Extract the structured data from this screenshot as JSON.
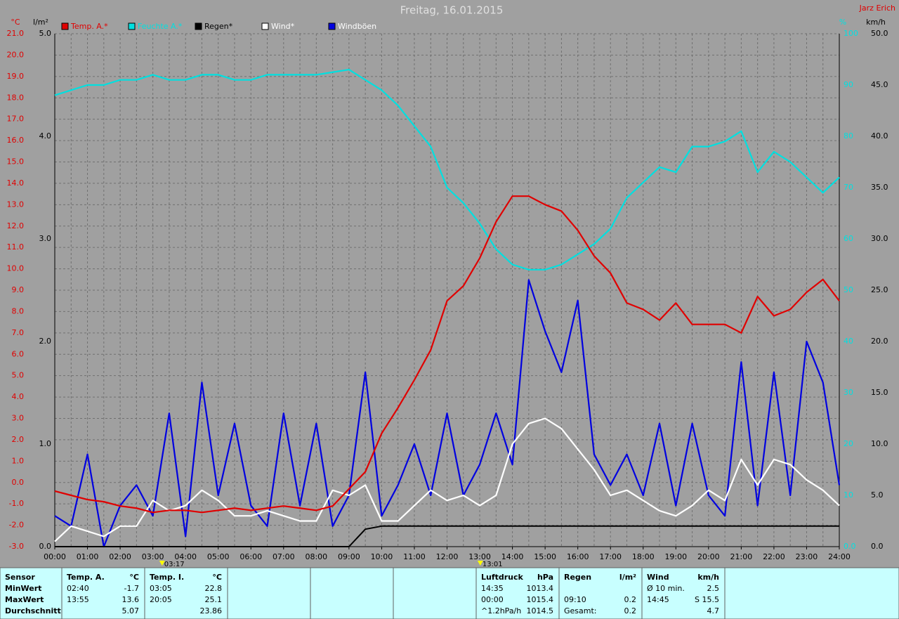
{
  "chart_data": {
    "type": "line",
    "title": "Freitag, 16.01.2015",
    "author": "Jarz Erich",
    "x": [
      0,
      0.5,
      1,
      1.5,
      2,
      2.5,
      3,
      3.5,
      4,
      4.5,
      5,
      5.5,
      6,
      6.5,
      7,
      7.5,
      8,
      8.5,
      9,
      9.5,
      10,
      10.5,
      11,
      11.5,
      12,
      12.5,
      13,
      13.5,
      14,
      14.5,
      15,
      15.5,
      16,
      16.5,
      17,
      17.5,
      18,
      18.5,
      19,
      19.5,
      20,
      20.5,
      21,
      21.5,
      22,
      22.5,
      23,
      23.5,
      24
    ],
    "xlim": [
      0,
      24
    ],
    "xticks": [
      {
        "value": 0,
        "label": "00:00"
      },
      {
        "value": 1,
        "label": "01:00"
      },
      {
        "value": 2,
        "label": "02:00"
      },
      {
        "value": 3,
        "label": "03:00"
      },
      {
        "value": 4,
        "label": "04:00"
      },
      {
        "value": 5,
        "label": "05:00"
      },
      {
        "value": 6,
        "label": "06:00"
      },
      {
        "value": 7,
        "label": "07:00"
      },
      {
        "value": 8,
        "label": "08:00"
      },
      {
        "value": 9,
        "label": "09:00"
      },
      {
        "value": 10,
        "label": "10:00"
      },
      {
        "value": 11,
        "label": "11:00"
      },
      {
        "value": 12,
        "label": "12:00"
      },
      {
        "value": 13,
        "label": "13:00"
      },
      {
        "value": 14,
        "label": "14:00"
      },
      {
        "value": 15,
        "label": "15:00"
      },
      {
        "value": 16,
        "label": "16:00"
      },
      {
        "value": 17,
        "label": "17:00"
      },
      {
        "value": 18,
        "label": "18:00"
      },
      {
        "value": 19,
        "label": "19:00"
      },
      {
        "value": 20,
        "label": "20:00"
      },
      {
        "value": 21,
        "label": "21:00"
      },
      {
        "value": 22,
        "label": "22:00"
      },
      {
        "value": 23,
        "label": "23:00"
      },
      {
        "value": 24,
        "label": "24:00"
      }
    ],
    "ylabel": "°C",
    "ylim": [
      -3,
      21
    ],
    "yticks": [
      {
        "value": -3,
        "label": "-3.0"
      },
      {
        "value": -2,
        "label": "-2.0"
      },
      {
        "value": -1,
        "label": "-1.0"
      },
      {
        "value": 0,
        "label": "0.0"
      },
      {
        "value": 1,
        "label": "1.0"
      },
      {
        "value": 2,
        "label": "2.0"
      },
      {
        "value": 3,
        "label": "3.0"
      },
      {
        "value": 4,
        "label": "4.0"
      },
      {
        "value": 5,
        "label": "5.0"
      },
      {
        "value": 6,
        "label": "6.0"
      },
      {
        "value": 7,
        "label": "7.0"
      },
      {
        "value": 8,
        "label": "8.0"
      },
      {
        "value": 9,
        "label": "9.0"
      },
      {
        "value": 10,
        "label": "10.0"
      },
      {
        "value": 11,
        "label": "11.0"
      },
      {
        "value": 12,
        "label": "12.0"
      },
      {
        "value": 13,
        "label": "13.0"
      },
      {
        "value": 14,
        "label": "14.0"
      },
      {
        "value": 15,
        "label": "15.0"
      },
      {
        "value": 16,
        "label": "16.0"
      },
      {
        "value": 17,
        "label": "17.0"
      },
      {
        "value": 18,
        "label": "18.0"
      },
      {
        "value": 19,
        "label": "19.0"
      },
      {
        "value": 20,
        "label": "20.0"
      },
      {
        "value": 21,
        "label": "21.0"
      }
    ],
    "y2label": "km/h",
    "y2lim": [
      0,
      50
    ],
    "y2ticks": [
      {
        "value": 0,
        "label": "0.0"
      },
      {
        "value": 5,
        "label": "5.0"
      },
      {
        "value": 10,
        "label": "10.0"
      },
      {
        "value": 15,
        "label": "15.0"
      },
      {
        "value": 20,
        "label": "20.0"
      },
      {
        "value": 25,
        "label": "25.0"
      },
      {
        "value": 30,
        "label": "30.0"
      },
      {
        "value": 35,
        "label": "35.0"
      },
      {
        "value": 40,
        "label": "40.0"
      },
      {
        "value": 45,
        "label": "45.0"
      },
      {
        "value": 50,
        "label": "50.0"
      }
    ],
    "y3label": "l/m²",
    "y3lim": [
      0,
      5
    ],
    "y3ticks": [
      {
        "value": 0,
        "label": "0.0"
      },
      {
        "value": 1,
        "label": "1.0"
      },
      {
        "value": 2,
        "label": "2.0"
      },
      {
        "value": 3,
        "label": "3.0"
      },
      {
        "value": 4,
        "label": "4.0"
      },
      {
        "value": 5,
        "label": "5.0"
      }
    ],
    "y4label": "%",
    "y4lim": [
      0,
      100
    ],
    "y4ticks": [
      {
        "value": 0,
        "label": "0.0"
      },
      10,
      20,
      30,
      40,
      50,
      60,
      70,
      80,
      90,
      100
    ],
    "grid": true,
    "series": [
      {
        "name": "Temp. A.*",
        "color": "#e00000",
        "axis": "y",
        "values": [
          -0.4,
          -0.6,
          -0.8,
          -0.9,
          -1.1,
          -1.2,
          -1.4,
          -1.3,
          -1.3,
          -1.4,
          -1.3,
          -1.2,
          -1.3,
          -1.2,
          -1.1,
          -1.2,
          -1.3,
          -1.1,
          -0.3,
          0.5,
          2.3,
          3.5,
          4.8,
          6.2,
          8.5,
          9.2,
          10.5,
          12.2,
          13.4,
          13.4,
          13.0,
          12.7,
          11.8,
          10.6,
          9.8,
          8.4,
          8.1,
          7.6,
          8.4,
          7.4,
          7.4,
          7.4,
          7.0,
          8.7,
          7.8,
          8.1,
          8.9,
          9.5,
          8.5
        ]
      },
      {
        "name": "Feuchte A.*",
        "color": "#00e0e0",
        "axis": "y4",
        "values": [
          88,
          89,
          90,
          90,
          91,
          91,
          92,
          91,
          91,
          92,
          92,
          91,
          91,
          92,
          92,
          92,
          92,
          92.5,
          93,
          91,
          89,
          86,
          82,
          78,
          70,
          67,
          63,
          58,
          55,
          54,
          54,
          55,
          57,
          59,
          62,
          68,
          71,
          74,
          73,
          78,
          78,
          79,
          81,
          73,
          77,
          75,
          72,
          69,
          72
        ]
      },
      {
        "name": "Regen*",
        "color": "#000000",
        "axis": "y3",
        "values": [
          0,
          0,
          0,
          0,
          0,
          0,
          0,
          0,
          0,
          0,
          0,
          0,
          0,
          0,
          0,
          0,
          0,
          0,
          0,
          0.17,
          0.2,
          0.2,
          0.2,
          0.2,
          0.2,
          0.2,
          0.2,
          0.2,
          0.2,
          0.2,
          0.2,
          0.2,
          0.2,
          0.2,
          0.2,
          0.2,
          0.2,
          0.2,
          0.2,
          0.2,
          0.2,
          0.2,
          0.2,
          0.2,
          0.2,
          0.2,
          0.2,
          0.2,
          0.2
        ]
      },
      {
        "name": "Wind*",
        "color": "#ffffff",
        "axis": "y2",
        "values": [
          0.5,
          2.0,
          1.5,
          1.0,
          2.0,
          2.0,
          4.5,
          3.5,
          4.0,
          5.5,
          4.5,
          3.0,
          3.0,
          3.5,
          3.0,
          2.5,
          2.5,
          5.5,
          5.0,
          6.0,
          2.5,
          2.5,
          4.0,
          5.5,
          4.5,
          5.0,
          4.0,
          5.0,
          10.0,
          12.0,
          12.5,
          11.5,
          9.5,
          7.5,
          5.0,
          5.5,
          4.5,
          3.5,
          3.0,
          4.0,
          5.5,
          4.5,
          8.5,
          6.0,
          8.5,
          8.0,
          6.5,
          5.5,
          4.0
        ]
      },
      {
        "name": "Windböen",
        "color": "#0000e0",
        "axis": "y2",
        "values": [
          3,
          2,
          9,
          0,
          4,
          6,
          3,
          13,
          1,
          16,
          5,
          12,
          4,
          2,
          13,
          4,
          12,
          2,
          5,
          17,
          3,
          6,
          10,
          5,
          13,
          5,
          8,
          13,
          8,
          26,
          21,
          17,
          24,
          9,
          6,
          9,
          5,
          12,
          4,
          12,
          5,
          3,
          18,
          4,
          17,
          5,
          20,
          16,
          6
        ]
      }
    ],
    "annotations": [
      {
        "x": 3.283,
        "label": "03:17"
      },
      {
        "x": 13.017,
        "label": "13:01"
      }
    ]
  },
  "table": {
    "panels": [
      {
        "header": [
          "Sensor",
          null
        ],
        "rows": [
          [
            "MinWert",
            null
          ],
          [
            "MaxWert",
            null
          ],
          [
            "Durchschnitt",
            null
          ]
        ]
      },
      {
        "header": [
          "Temp. A.",
          "°C"
        ],
        "rows": [
          [
            "02:40",
            "-1.7"
          ],
          [
            "13:55",
            "13.6"
          ],
          [
            null,
            "5.07"
          ]
        ]
      },
      {
        "header": [
          "Temp. I.",
          "°C"
        ],
        "rows": [
          [
            "03:05",
            "22.8"
          ],
          [
            "20:05",
            "25.1"
          ],
          [
            null,
            "23.86"
          ]
        ]
      },
      {
        "header": [
          null,
          null
        ],
        "rows": []
      },
      {
        "header": [
          null,
          null
        ],
        "rows": []
      },
      {
        "header": [
          null,
          null
        ],
        "rows": []
      },
      {
        "header": [
          "Luftdruck",
          "hPa"
        ],
        "rows": [
          [
            "14:35",
            "1013.4"
          ],
          [
            "00:00",
            "1015.4"
          ],
          [
            "^1.2hPa/h",
            "1014.5"
          ]
        ]
      },
      {
        "header": [
          "Regen",
          "l/m²"
        ],
        "rows": [
          [
            null,
            null
          ],
          [
            "09:10",
            "0.2"
          ],
          [
            "Gesamt:",
            "0.2"
          ]
        ]
      },
      {
        "header": [
          "Wind",
          "km/h"
        ],
        "rows": [
          [
            "Ø 10 min.",
            "2.5"
          ],
          [
            "14:45",
            "S 15.5"
          ],
          [
            null,
            "4.7"
          ]
        ]
      }
    ]
  }
}
